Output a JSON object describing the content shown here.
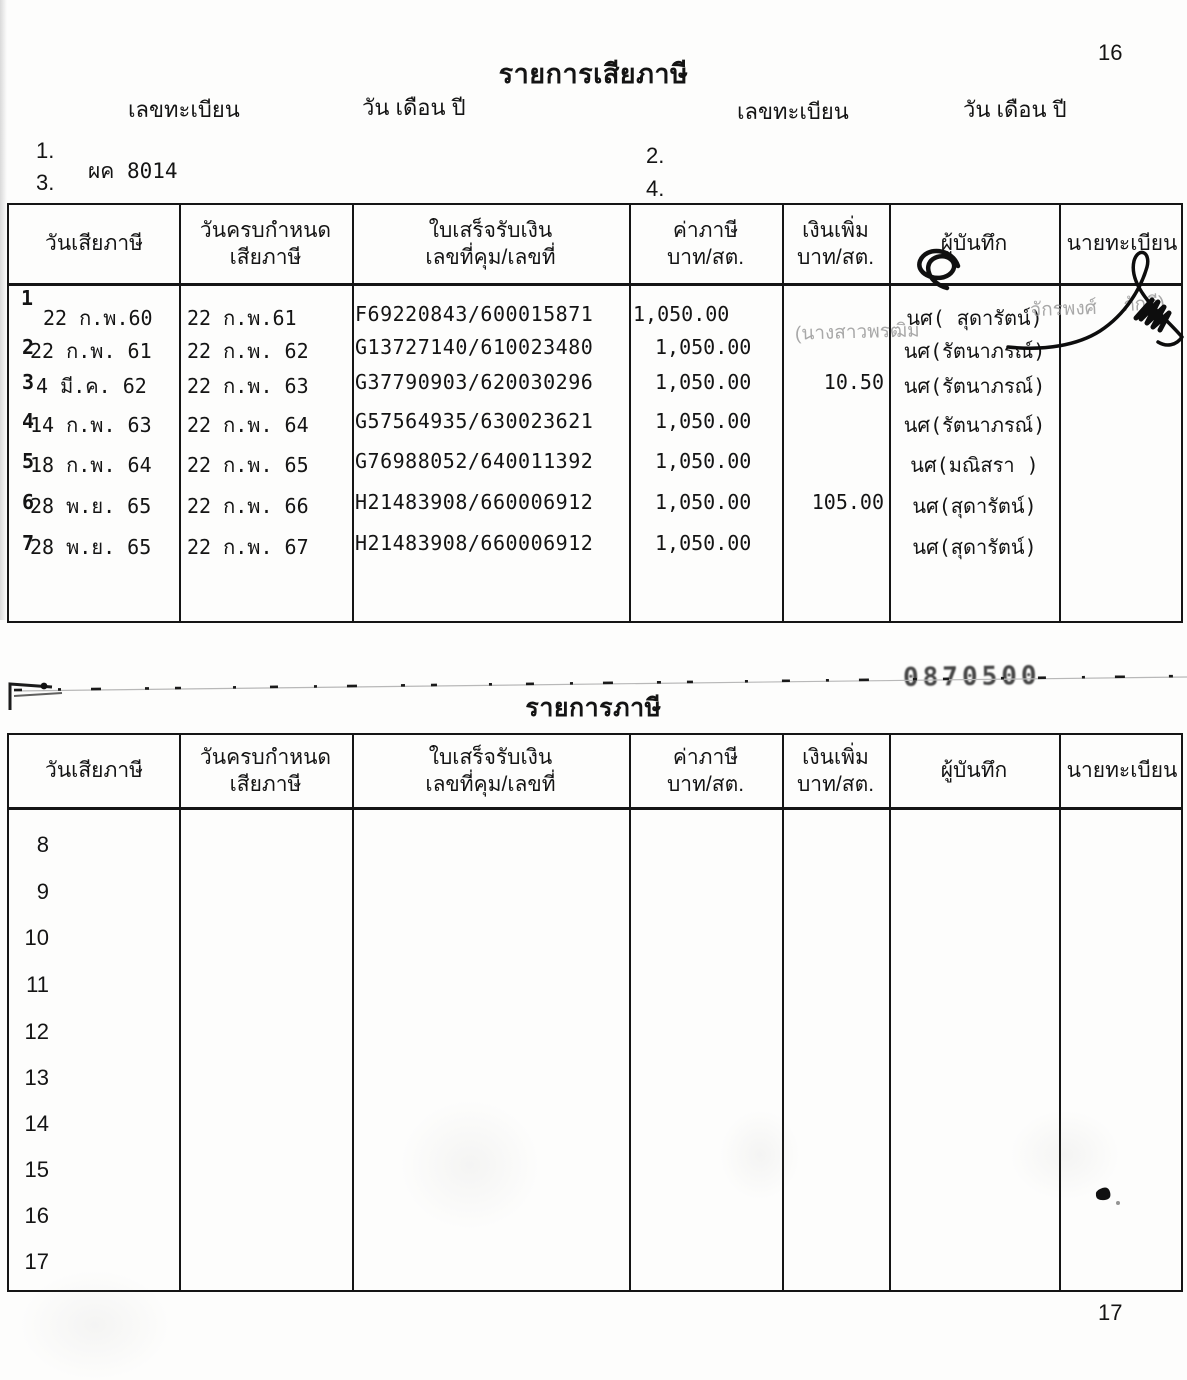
{
  "page": {
    "number_top": "16",
    "number_bottom": "17"
  },
  "form_header": {
    "title": "รายการเสียภาษี",
    "reg_label_left": "เลขทะเบียน",
    "date_label_left": "วัน เดือน ปี",
    "reg_label_right": "เลขทะเบียน",
    "date_label_right": "วัน เดือน ปี",
    "item1": "1.",
    "item2": "2.",
    "item3": "3.",
    "item4": "4.",
    "registration_value": "ผค 8014"
  },
  "table_columns": [
    {
      "line1": "วันเสียภาษี",
      "line2": ""
    },
    {
      "line1": "วันครบกำหนด",
      "line2": "เสียภาษี"
    },
    {
      "line1": "ใบเสร็จรับเงิน",
      "line2": "เลขที่คุม/เลขที่"
    },
    {
      "line1": "ค่าภาษี",
      "line2": "บาท/สต."
    },
    {
      "line1": "เงินเพิ่ม",
      "line2": "บาท/สต."
    },
    {
      "line1": "ผู้บันทึก",
      "line2": ""
    },
    {
      "line1": "นายทะเบียน",
      "line2": ""
    }
  ],
  "tax_table": {
    "rows": [
      {
        "no": "1",
        "date": "22 ก.พ.60",
        "due": "22 ก.พ.61",
        "receipt": "F69220843/600015871",
        "tax": "1,050.00",
        "surcharge": "",
        "recorder": "นศ( สุดารัตน์)"
      },
      {
        "no": "2",
        "date": "22 ก.พ. 61",
        "due": "22 ก.พ. 62",
        "receipt": "G13727140/610023480",
        "tax": "1,050.00",
        "surcharge": "",
        "recorder": "นศ(รัตนาภรณ์)"
      },
      {
        "no": "3",
        "date": "4 มี.ค. 62",
        "due": "22 ก.พ. 63",
        "receipt": "G37790903/620030296",
        "tax": "1,050.00",
        "surcharge": "10.50",
        "recorder": "นศ(รัตนาภรณ์)"
      },
      {
        "no": "4",
        "date": "14 ก.พ. 63",
        "due": "22 ก.พ. 64",
        "receipt": "G57564935/630023621",
        "tax": "1,050.00",
        "surcharge": "",
        "recorder": "นศ(รัตนาภรณ์)"
      },
      {
        "no": "5",
        "date": "18 ก.พ. 64",
        "due": "22 ก.พ. 65",
        "receipt": "G76988052/640011392",
        "tax": "1,050.00",
        "surcharge": "",
        "recorder": "นศ(มณิสรา )"
      },
      {
        "no": "6",
        "date": "28 พ.ย. 65",
        "due": "22 ก.พ. 66",
        "receipt": "H21483908/660006912",
        "tax": "1,050.00",
        "surcharge": "105.00",
        "recorder": "นศ(สุดารัตน์)"
      },
      {
        "no": "7",
        "date": "28 พ.ย. 65",
        "due": "22 ก.พ. 67",
        "receipt": "H21483908/660006912",
        "tax": "1,050.00",
        "surcharge": "",
        "recorder": "นศ(สุดารัตน์)"
      }
    ]
  },
  "stamp": {
    "left_fragment": "(นางสาวพรฒิม",
    "mid_fragment": "จักรพงศ์",
    "right_fragment": "ภักดี)"
  },
  "separator": {
    "faded_number": "0870500"
  },
  "tax_table_2": {
    "title": "รายการภาษี",
    "row_numbers": [
      "8",
      "9",
      "10",
      "11",
      "12",
      "13",
      "14",
      "15",
      "16",
      "17"
    ]
  }
}
